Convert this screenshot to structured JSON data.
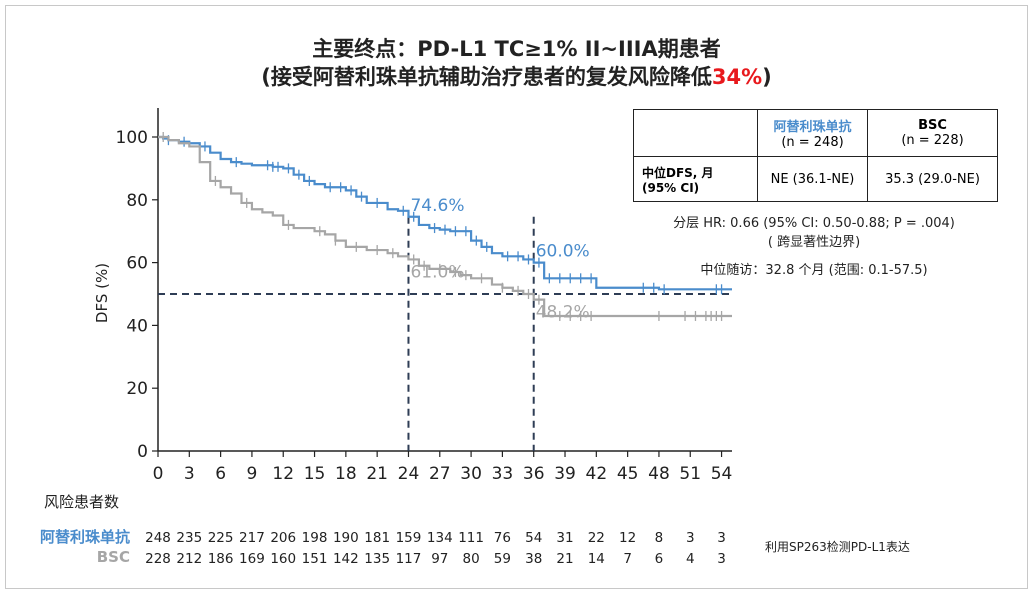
{
  "title_line1": "主要终点：PD-L1 TC≥1% II~IIIA期患者",
  "title_line2_prefix": "(接受阿替利珠单抗辅助治疗患者的复发风险降低",
  "title_line2_accent": "34%",
  "title_line2_suffix": ")",
  "accent_color": "#e8191d",
  "colors": {
    "atezolizumab": "#4a8ccc",
    "bsc": "#a6a6a6",
    "reference": "#2e3d55"
  },
  "stats_table": {
    "col1_name": "阿替利珠单抗",
    "col1_n": "(n = 248)",
    "col2_name": "BSC",
    "col2_n": "(n = 228)",
    "row_label_1": "中位DFS, 月",
    "row_label_2": "(95% CI)",
    "col1_value": "NE (36.1-NE)",
    "col2_value": "35.3 (29.0-NE)"
  },
  "hr_note_line1": "分层 HR: 0.66 (95% CI: 0.50-0.88; P = .004)",
  "hr_note_line2": "( 跨显著性边界)",
  "followup_note": "中位随访：32.8 个月 (范围: 0.1-57.5)",
  "risk_table_title": "风险患者数",
  "sp263_note": "利用SP263检测PD-L1表达",
  "chart_data": {
    "type": "line",
    "xlabel": "",
    "ylabel": "DFS (%)",
    "xlim": [
      0,
      55
    ],
    "ylim": [
      0,
      100
    ],
    "x_ticks": [
      0,
      3,
      6,
      9,
      12,
      15,
      18,
      21,
      24,
      27,
      30,
      33,
      36,
      39,
      42,
      45,
      48,
      51,
      54
    ],
    "y_ticks": [
      0,
      20,
      40,
      60,
      80,
      100
    ],
    "grid": false,
    "series": [
      {
        "name": "阿替利珠单抗",
        "color": "#4a8ccc",
        "steps": [
          [
            0,
            100
          ],
          [
            0.5,
            99.5
          ],
          [
            1,
            99
          ],
          [
            2,
            98.5
          ],
          [
            3,
            98
          ],
          [
            4,
            97
          ],
          [
            5,
            95
          ],
          [
            6,
            93
          ],
          [
            7,
            92
          ],
          [
            8,
            91.5
          ],
          [
            9,
            91
          ],
          [
            11,
            90.5
          ],
          [
            12,
            90
          ],
          [
            13,
            88
          ],
          [
            14,
            86
          ],
          [
            15,
            85
          ],
          [
            16,
            84
          ],
          [
            18,
            83
          ],
          [
            19,
            81
          ],
          [
            20,
            79
          ],
          [
            22,
            77
          ],
          [
            23,
            76.5
          ],
          [
            24,
            74.6
          ],
          [
            25,
            72
          ],
          [
            26,
            71
          ],
          [
            27,
            70.5
          ],
          [
            28,
            70
          ],
          [
            29,
            70
          ],
          [
            30,
            67
          ],
          [
            31,
            65
          ],
          [
            32,
            63
          ],
          [
            33,
            62
          ],
          [
            35,
            61
          ],
          [
            36,
            60
          ],
          [
            37,
            55
          ],
          [
            40,
            55
          ],
          [
            41,
            55
          ],
          [
            42,
            52
          ],
          [
            45,
            52
          ],
          [
            48,
            51.5
          ],
          [
            50,
            51.5
          ],
          [
            54,
            51.5
          ],
          [
            55,
            51.5
          ]
        ],
        "annotations": [
          {
            "x": 24,
            "y": 74.6,
            "label": "74.6%"
          },
          {
            "x": 36,
            "y": 60.0,
            "label": "60.0%"
          }
        ]
      },
      {
        "name": "BSC",
        "color": "#a6a6a6",
        "steps": [
          [
            0,
            100
          ],
          [
            1,
            99
          ],
          [
            2,
            98
          ],
          [
            3,
            97
          ],
          [
            4,
            92
          ],
          [
            5,
            86
          ],
          [
            6,
            84
          ],
          [
            7,
            82
          ],
          [
            8,
            79
          ],
          [
            9,
            77
          ],
          [
            10,
            76
          ],
          [
            11,
            75
          ],
          [
            12,
            72
          ],
          [
            13,
            71
          ],
          [
            15,
            70
          ],
          [
            16,
            69
          ],
          [
            17,
            67
          ],
          [
            18,
            65
          ],
          [
            20,
            64
          ],
          [
            22,
            63
          ],
          [
            23,
            62
          ],
          [
            24,
            61
          ],
          [
            25,
            59
          ],
          [
            26,
            58
          ],
          [
            28,
            57
          ],
          [
            29,
            56
          ],
          [
            30,
            55
          ],
          [
            32,
            53
          ],
          [
            33,
            52
          ],
          [
            34,
            51
          ],
          [
            35,
            50
          ],
          [
            36,
            48.2
          ],
          [
            37,
            43
          ],
          [
            40,
            43
          ],
          [
            45,
            43
          ],
          [
            50,
            43
          ],
          [
            55,
            43
          ]
        ],
        "annotations": [
          {
            "x": 24,
            "y": 61.0,
            "label": "61.0%"
          },
          {
            "x": 36,
            "y": 48.2,
            "label": "48.2%"
          }
        ]
      }
    ],
    "censor_marks": {
      "阿替利珠单抗": [
        1,
        2.5,
        4.5,
        7.5,
        10.5,
        11,
        11.5,
        12.5,
        13.5,
        14.5,
        16.5,
        17.5,
        18.5,
        19.5,
        21,
        23.5,
        24.5,
        26.5,
        27.5,
        28.5,
        29.5,
        30.5,
        31.5,
        33.5,
        34.5,
        35.5,
        36.5,
        37.5,
        38.5,
        39.5,
        40.5,
        41.5,
        46.5,
        47.5,
        48.5,
        53.5,
        54
      ],
      "BSC": [
        0.5,
        5.5,
        8.5,
        12.5,
        15.5,
        17,
        19,
        21,
        22.5,
        24.5,
        25.5,
        27,
        28.5,
        29.5,
        31,
        33,
        34.5,
        35.5,
        36.5,
        38.5,
        39.5,
        40.5,
        41.5,
        48,
        50.5,
        51.5,
        52.5,
        53,
        53.5,
        54
      ]
    },
    "reference_lines": {
      "y": 50,
      "x_at_y50": [
        24,
        36
      ]
    },
    "risk_table": {
      "times": [
        0,
        3,
        6,
        9,
        12,
        15,
        18,
        21,
        24,
        27,
        30,
        33,
        36,
        39,
        42,
        45,
        48,
        51,
        54
      ],
      "阿替利珠单抗": [
        248,
        235,
        225,
        217,
        206,
        198,
        190,
        181,
        159,
        134,
        111,
        76,
        54,
        31,
        22,
        12,
        8,
        3,
        3
      ],
      "BSC": [
        228,
        212,
        186,
        169,
        160,
        151,
        142,
        135,
        117,
        97,
        80,
        59,
        38,
        21,
        14,
        7,
        6,
        4,
        3
      ]
    }
  }
}
